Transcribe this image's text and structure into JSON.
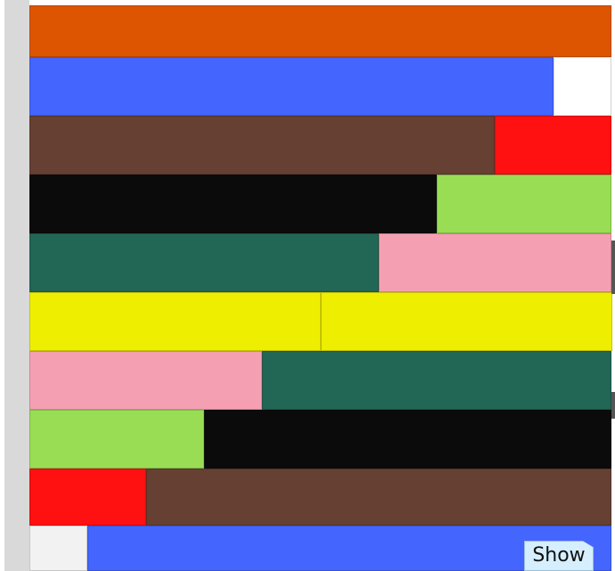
{
  "puzzle": {
    "rows": [
      {
        "rods": [
          {
            "length": 10,
            "color": "#dd5500"
          }
        ]
      },
      {
        "rods": [
          {
            "length": 9,
            "color": "#4466ff"
          },
          {
            "length": 1,
            "color": "#ffffff"
          }
        ]
      },
      {
        "rods": [
          {
            "length": 8,
            "color": "#664033"
          },
          {
            "length": 2,
            "color": "#ff1111"
          }
        ]
      },
      {
        "rods": [
          {
            "length": 7,
            "color": "#0b0b0b"
          },
          {
            "length": 3,
            "color": "#99dd55"
          }
        ]
      },
      {
        "rods": [
          {
            "length": 6,
            "color": "#226655"
          },
          {
            "length": 4,
            "color": "#f5a0b2"
          }
        ]
      },
      {
        "rods": [
          {
            "length": 5,
            "color": "#eeee00"
          },
          {
            "length": 5,
            "color": "#eeee00"
          }
        ]
      },
      {
        "rods": [
          {
            "length": 4,
            "color": "#f5a0b2"
          },
          {
            "length": 6,
            "color": "#226655"
          }
        ]
      },
      {
        "rods": [
          {
            "length": 3,
            "color": "#99dd55"
          },
          {
            "length": 7,
            "color": "#0b0b0b"
          }
        ]
      },
      {
        "rods": [
          {
            "length": 2,
            "color": "#ff1111"
          },
          {
            "length": 8,
            "color": "#664033"
          }
        ]
      },
      {
        "rods": [
          {
            "length": 1,
            "color": "#f2f2f2"
          },
          {
            "length": 9,
            "color": "#4466ff"
          }
        ]
      }
    ]
  },
  "controls": {
    "show_label": "Show"
  }
}
